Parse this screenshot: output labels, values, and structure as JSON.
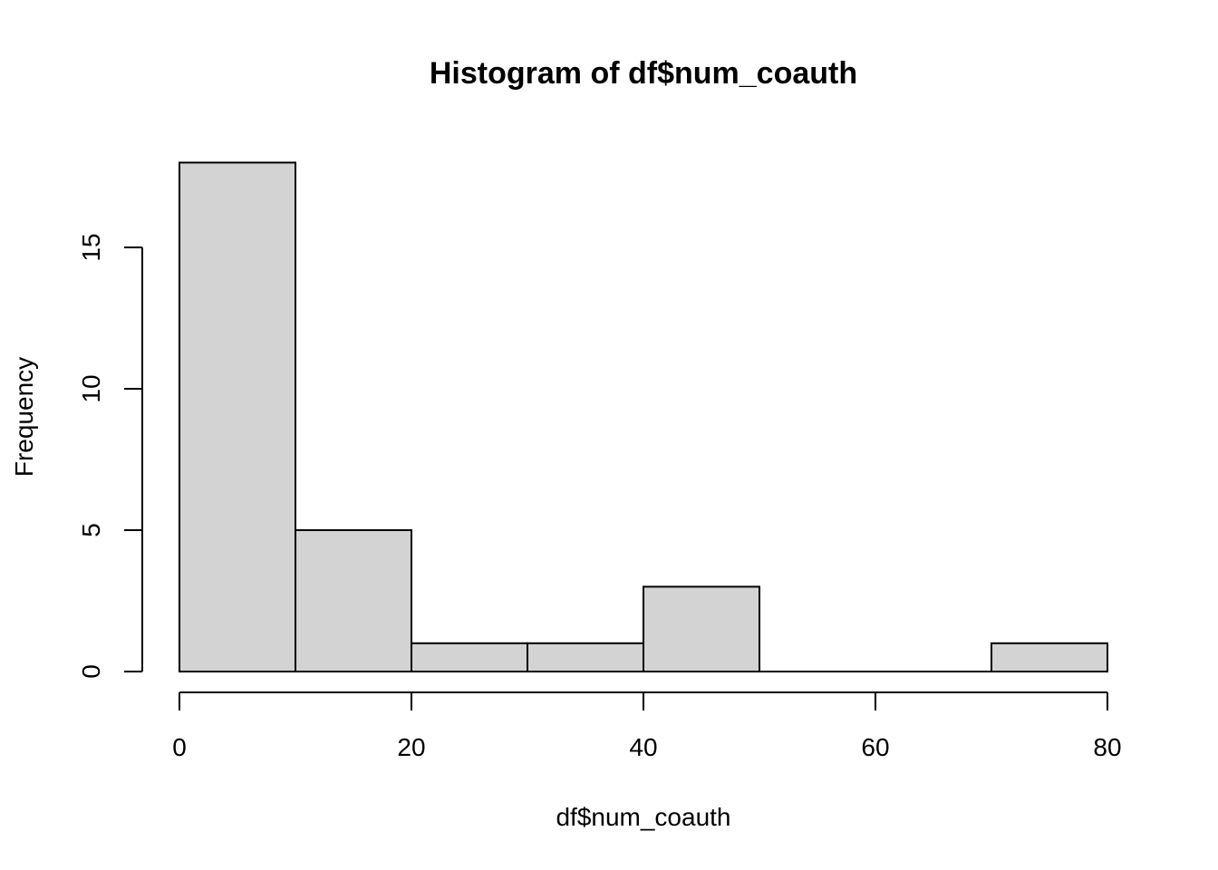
{
  "chart_data": {
    "type": "bar",
    "title": "Histogram of df$num_coauth",
    "xlabel": "df$num_coauth",
    "ylabel": "Frequency",
    "bins": [
      {
        "from": 0,
        "to": 10,
        "count": 18
      },
      {
        "from": 10,
        "to": 20,
        "count": 5
      },
      {
        "from": 20,
        "to": 30,
        "count": 1
      },
      {
        "from": 30,
        "to": 40,
        "count": 1
      },
      {
        "from": 40,
        "to": 50,
        "count": 3
      },
      {
        "from": 50,
        "to": 60,
        "count": 0
      },
      {
        "from": 60,
        "to": 70,
        "count": 0
      },
      {
        "from": 70,
        "to": 80,
        "count": 1
      }
    ],
    "xticks": [
      0,
      20,
      40,
      60,
      80
    ],
    "yticks": [
      0,
      5,
      10,
      15
    ],
    "xlim": [
      0,
      80
    ],
    "ylim": [
      0,
      18
    ],
    "grid": false,
    "bar_color": "#d3d3d3",
    "edge_color": "#000000"
  }
}
